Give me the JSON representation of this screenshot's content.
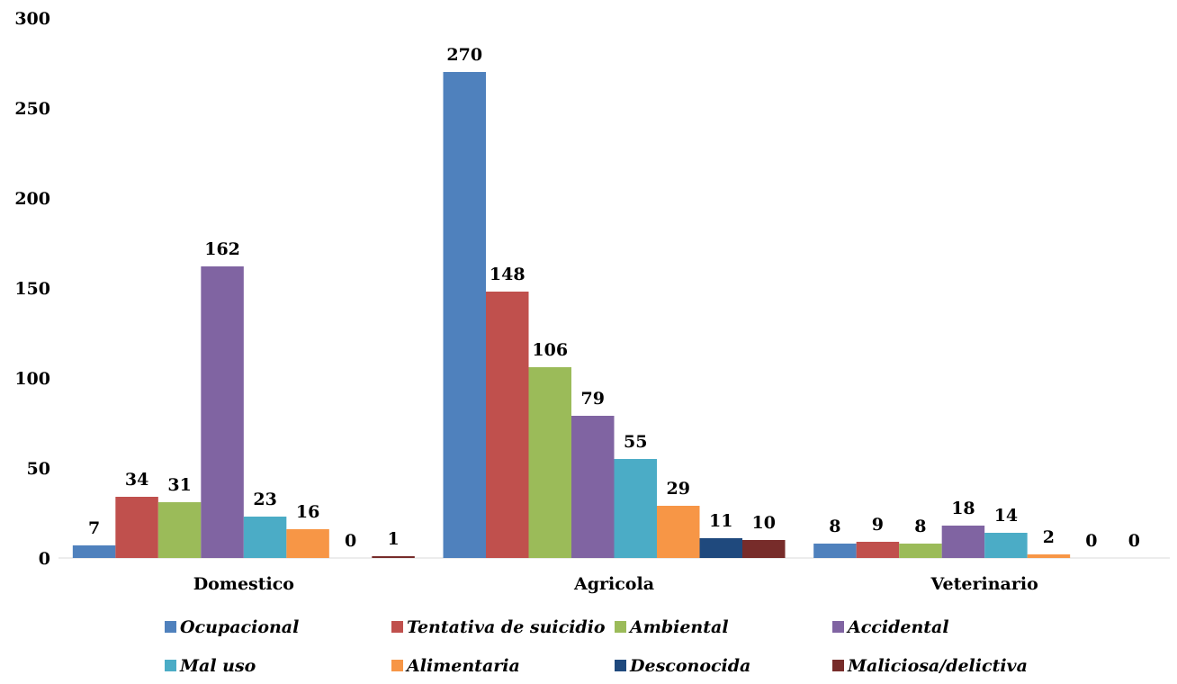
{
  "chart_data": {
    "type": "bar",
    "categories": [
      "Domestico",
      "Agricola",
      "Veterinario"
    ],
    "series": [
      {
        "name": "Ocupacional",
        "color": "#4F81BD",
        "values": [
          7,
          270,
          8
        ]
      },
      {
        "name": "Tentativa de suicidio",
        "color": "#C0504D",
        "values": [
          34,
          148,
          9
        ]
      },
      {
        "name": "Ambiental",
        "color": "#9BBB59",
        "values": [
          31,
          106,
          8
        ]
      },
      {
        "name": "Accidental",
        "color": "#8064A2",
        "values": [
          162,
          79,
          18
        ]
      },
      {
        "name": "Mal uso",
        "color": "#4BACC6",
        "values": [
          23,
          55,
          14
        ]
      },
      {
        "name": "Alimentaria",
        "color": "#F79646",
        "values": [
          16,
          29,
          2
        ]
      },
      {
        "name": "Desconocida",
        "color": "#1F497D",
        "values": [
          0,
          11,
          0
        ]
      },
      {
        "name": "Maliciosa/delictiva",
        "color": "#772C2A",
        "values": [
          1,
          10,
          0
        ]
      }
    ],
    "yticks": [
      "0",
      "50",
      "100",
      "150",
      "200",
      "250",
      "300"
    ],
    "ylim": [
      0,
      300
    ],
    "grid": false,
    "legend_position": "bottom",
    "title": "",
    "xlabel": "",
    "ylabel": ""
  }
}
